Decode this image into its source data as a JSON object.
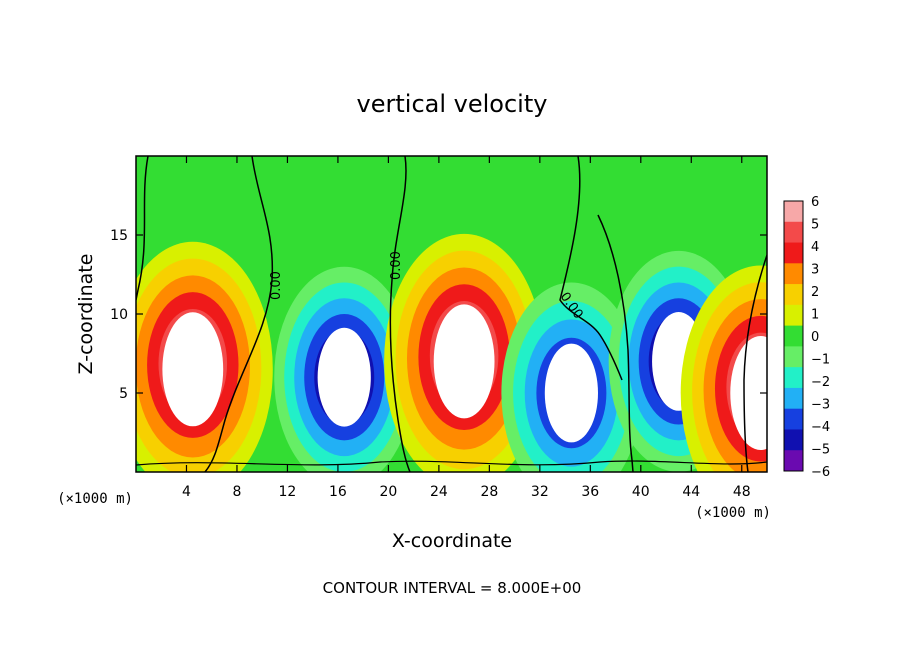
{
  "chart_data": {
    "type": "heatmap",
    "title": "vertical velocity",
    "xlabel": "X-coordinate",
    "ylabel": "Z-coordinate",
    "x_unit_label": "(×1000 m)",
    "x_unit_label_right": "(×1000 m)",
    "xlim": [
      0,
      50
    ],
    "ylim": [
      0,
      20
    ],
    "x_ticks": [
      4,
      8,
      12,
      16,
      20,
      24,
      28,
      32,
      36,
      40,
      44,
      48
    ],
    "y_ticks": [
      5,
      10,
      15
    ],
    "colorbar": {
      "ticks": [
        6,
        5,
        4,
        3,
        2,
        1,
        0,
        -1,
        -2,
        -3,
        -4,
        -5,
        -6
      ],
      "colors": [
        "#f7a8a8",
        "#f34a4a",
        "#ef1a1a",
        "#ff8a00",
        "#f7d000",
        "#d8f000",
        "#33dd33",
        "#66ee66",
        "#22f0c8",
        "#22b0f5",
        "#1640e0",
        "#1010b0",
        "#6a0ab0"
      ]
    },
    "contour_labels": [
      "0.00",
      "0.00",
      "0.00"
    ],
    "footer": "CONTOUR INTERVAL = 8.000E+00",
    "features": [
      {
        "kind": "updraft",
        "x": 4.5,
        "z": 6.5,
        "peak": 6
      },
      {
        "kind": "downdraft",
        "x": 16.5,
        "z": 6.0,
        "peak": -6
      },
      {
        "kind": "updraft",
        "x": 26.0,
        "z": 7.0,
        "peak": 6
      },
      {
        "kind": "downdraft",
        "x": 34.5,
        "z": 5.0,
        "peak": -5
      },
      {
        "kind": "downdraft",
        "x": 43.0,
        "z": 7.0,
        "peak": -6
      },
      {
        "kind": "updraft",
        "x": 49.5,
        "z": 5.0,
        "peak": 6
      }
    ]
  }
}
